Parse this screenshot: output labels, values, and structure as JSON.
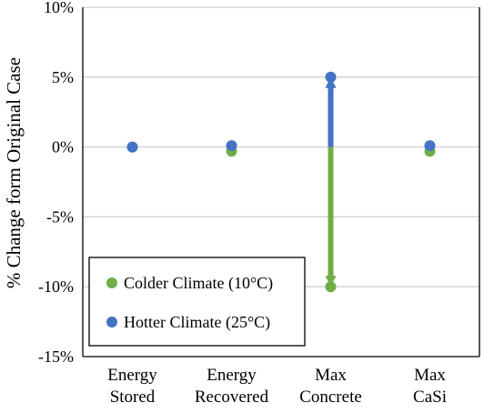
{
  "chart_data": {
    "type": "scatter",
    "title": "",
    "xlabel": "",
    "ylabel": "% Change form Original Case",
    "categories": [
      [
        "Energy",
        "Stored"
      ],
      [
        "Energy",
        "Recovered"
      ],
      [
        "Max",
        "Concrete"
      ],
      [
        "Max",
        "CaSi"
      ]
    ],
    "ylim": [
      -15,
      10
    ],
    "yticks": [
      -15,
      -10,
      -5,
      0,
      5,
      10
    ],
    "ytick_labels": [
      "-15%",
      "-10%",
      "-5%",
      "0%",
      "5%",
      "10%"
    ],
    "grid": "horizontal",
    "legend_position": "bottom-left",
    "series": [
      {
        "name": "Colder Climate (10°C)",
        "color": "#70ad47",
        "values": [
          0,
          -0.3,
          -10,
          -0.3
        ]
      },
      {
        "name": "Hotter Climate (25°C)",
        "color": "#4472c4",
        "values": [
          0,
          0.1,
          5,
          0.1
        ]
      }
    ],
    "arrows": [
      {
        "category_index": 2,
        "from": 0,
        "to": -10,
        "color": "#70ad47"
      },
      {
        "category_index": 2,
        "from": 0,
        "to": 5,
        "color": "#4472c4"
      }
    ]
  }
}
